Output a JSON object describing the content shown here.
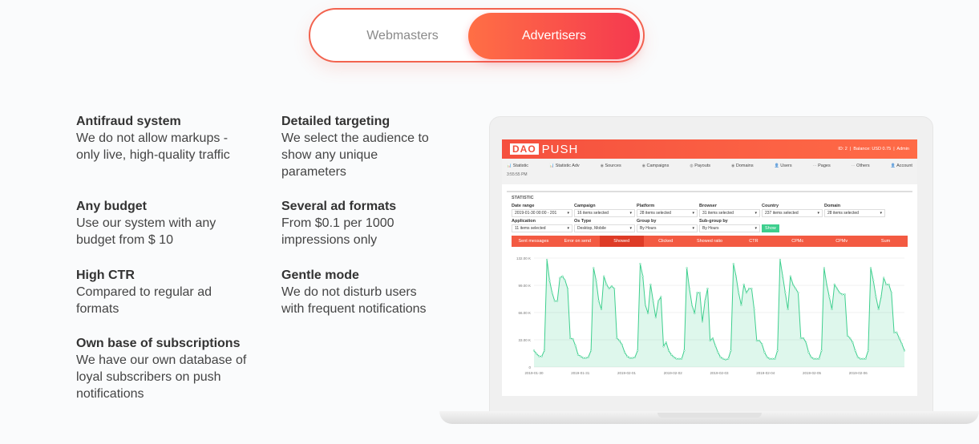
{
  "toggle": {
    "webmasters": "Webmasters",
    "advertisers": "Advertisers",
    "active": "Advertisers"
  },
  "features": [
    {
      "title": "Antifraud system",
      "text": "We do not allow markups - only live, high-quality traffic"
    },
    {
      "title": "Detailed targeting",
      "text": "We select the audience to show any unique parameters"
    },
    {
      "title": "Any budget",
      "text": "Use our system with any budget from $ 10"
    },
    {
      "title": "Several ad formats",
      "text": "From $0.1 per 1000 impressions only"
    },
    {
      "title": "High CTR",
      "text": "Compared to regular ad formats"
    },
    {
      "title": "Gentle mode",
      "text": "We do not disturb users with frequent notifications"
    },
    {
      "title": "Own base of subscriptions",
      "text": "We have our own database of loyal subscribers on push notifications"
    }
  ],
  "app": {
    "logo_dao": "DAO",
    "logo_push": "PUSH",
    "account_info": "ID: 2  |  Balance: USD 0.75  |  Admin",
    "nav": [
      "Statistic",
      "Statistic Adv",
      "Sources",
      "Campaigns",
      "Payouts",
      "Domains",
      "Users",
      "Pages",
      "Others",
      "Account"
    ],
    "time": "3:55:55 PM",
    "panel_title": "STATISTIC",
    "filters_row1": [
      {
        "label": "Date range",
        "value": "2019-01-30 00:00 - 201"
      },
      {
        "label": "Campaign",
        "value": "16 items selected"
      },
      {
        "label": "Platform",
        "value": "28 items selected"
      },
      {
        "label": "Browser",
        "value": "31 items selected"
      },
      {
        "label": "Country",
        "value": "237 items selected"
      },
      {
        "label": "Domain",
        "value": "28 items selected"
      }
    ],
    "filters_row2": [
      {
        "label": "Application",
        "value": "11 items selected"
      },
      {
        "label": "Os Type",
        "value": "Desktop, Mobile"
      },
      {
        "label": "Group by",
        "value": "By Hours"
      },
      {
        "label": "Sub-group by",
        "value": "By Hours"
      }
    ],
    "show_label": "Show",
    "metric_tabs": [
      "Sent messages",
      "Error on send",
      "Showed",
      "Clicked",
      "Showed ratio",
      "CTR",
      "CPMc",
      "CPMv",
      "Sum"
    ],
    "active_tab": "Showed",
    "accent": "#f35a42",
    "series_color": "#3ecf8e"
  },
  "chart_data": {
    "type": "area",
    "x_ticks": [
      "2019-01-30",
      "2019-01-31",
      "2019-02-01",
      "2019-02-02",
      "2019-02-03",
      "2019-02-04",
      "2019-02-05",
      "2019-02-06"
    ],
    "y_ticks": [
      "0",
      "33.00 K",
      "66.00 K",
      "99.00 K",
      "132.00 K"
    ],
    "ylim": [
      0,
      132
    ],
    "y_unit": "K",
    "grid": true,
    "series": [
      {
        "values": [
          20,
          16,
          13,
          13,
          20,
          130,
          105,
          90,
          80,
          80,
          108,
          110,
          105,
          95,
          35,
          34,
          26,
          15,
          13,
          11,
          11,
          12,
          20,
          120,
          105,
          80,
          70,
          110,
          100,
          95,
          98,
          95,
          35,
          32,
          27,
          18,
          13,
          11,
          11,
          12,
          20,
          125,
          110,
          75,
          65,
          100,
          80,
          60,
          80,
          85,
          25,
          30,
          20,
          15,
          12,
          10,
          10,
          10,
          20,
          120,
          95,
          75,
          65,
          90,
          90,
          55,
          80,
          95,
          32,
          35,
          26,
          18,
          12,
          10,
          9,
          10,
          20,
          125,
          110,
          90,
          75,
          100,
          90,
          95,
          95,
          70,
          32,
          32,
          28,
          18,
          12,
          10,
          10,
          10,
          20,
          130,
          110,
          90,
          70,
          110,
          100,
          95,
          90,
          35,
          35,
          30,
          18,
          12,
          10,
          10,
          10,
          20,
          120,
          100,
          85,
          70,
          100,
          95,
          90,
          88,
          88,
          38,
          35,
          30,
          20,
          12,
          10,
          10,
          10,
          20,
          120,
          105,
          85,
          70,
          85,
          108,
          100,
          100,
          90,
          42,
          42,
          35,
          28,
          20
        ]
      }
    ]
  }
}
